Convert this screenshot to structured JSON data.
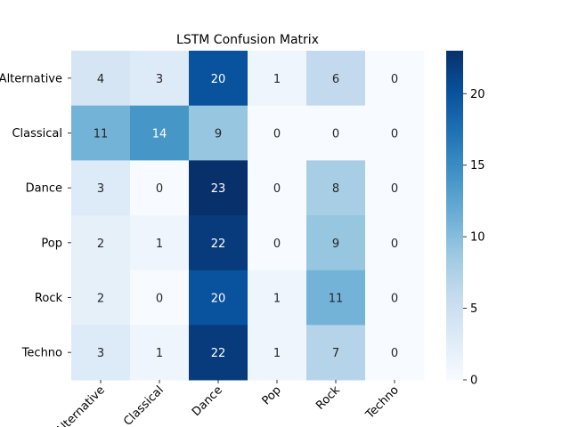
{
  "chart_data": {
    "type": "heatmap",
    "title": "LSTM Confusion Matrix",
    "xlabel": "",
    "ylabel": "",
    "x_categories": [
      "Alternative",
      "Classical",
      "Dance",
      "Pop",
      "Rock",
      "Techno"
    ],
    "y_categories": [
      "Alternative",
      "Classical",
      "Dance",
      "Pop",
      "Rock",
      "Techno"
    ],
    "values": [
      [
        4,
        3,
        20,
        1,
        6,
        0
      ],
      [
        11,
        14,
        9,
        0,
        0,
        0
      ],
      [
        3,
        0,
        23,
        0,
        8,
        0
      ],
      [
        2,
        1,
        22,
        0,
        9,
        0
      ],
      [
        2,
        0,
        20,
        1,
        11,
        0
      ],
      [
        3,
        1,
        22,
        1,
        7,
        0
      ]
    ],
    "colormap": "Blues",
    "vmin": 0,
    "vmax": 23,
    "colorbar_ticks": [
      0,
      5,
      10,
      15,
      20
    ],
    "colors": {
      "low": "#f7fbff",
      "high": "#08306b",
      "annotation_dark": "#262626",
      "annotation_light": "#ffffff"
    },
    "grid": false
  }
}
